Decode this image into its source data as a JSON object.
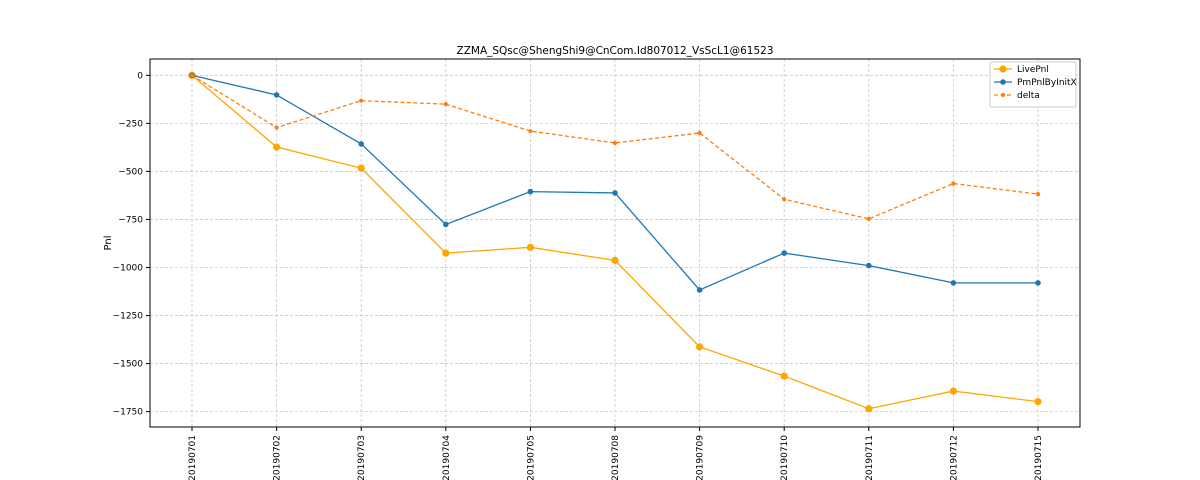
{
  "chart_data": {
    "type": "line",
    "title": "ZZMA_SQsc@ShengShi9@CnCom.Id807012_VsScL1@61523",
    "xlabel": "",
    "ylabel": "Pnl",
    "categories": [
      "20190701",
      "20190702",
      "20190703",
      "20190704",
      "20190705",
      "20190708",
      "20190709",
      "20190710",
      "20190711",
      "20190712",
      "20190715"
    ],
    "ylim": [
      -1830,
      85
    ],
    "yticks": [
      0,
      -250,
      -500,
      -750,
      -1000,
      -1250,
      -1500,
      -1750
    ],
    "grid": true,
    "legend_position": "top-right",
    "series": [
      {
        "name": "LivePnl",
        "color": "#ffa500",
        "style": "solid",
        "marker": "large-circle",
        "values": [
          0,
          -373,
          -483,
          -925,
          -895,
          -963,
          -1413,
          -1565,
          -1735,
          -1643,
          -1698
        ]
      },
      {
        "name": "PmPnlByInitX",
        "color": "#1f77b4",
        "style": "solid",
        "marker": "circle",
        "values": [
          0,
          -102,
          -357,
          -776,
          -605,
          -612,
          -1117,
          -925,
          -990,
          -1080,
          -1080
        ]
      },
      {
        "name": "delta",
        "color": "#ff7f0e",
        "style": "dashed",
        "marker": "small-circle",
        "values": [
          0,
          -272,
          -132,
          -150,
          -290,
          -352,
          -300,
          -645,
          -747,
          -563,
          -618
        ]
      }
    ]
  }
}
